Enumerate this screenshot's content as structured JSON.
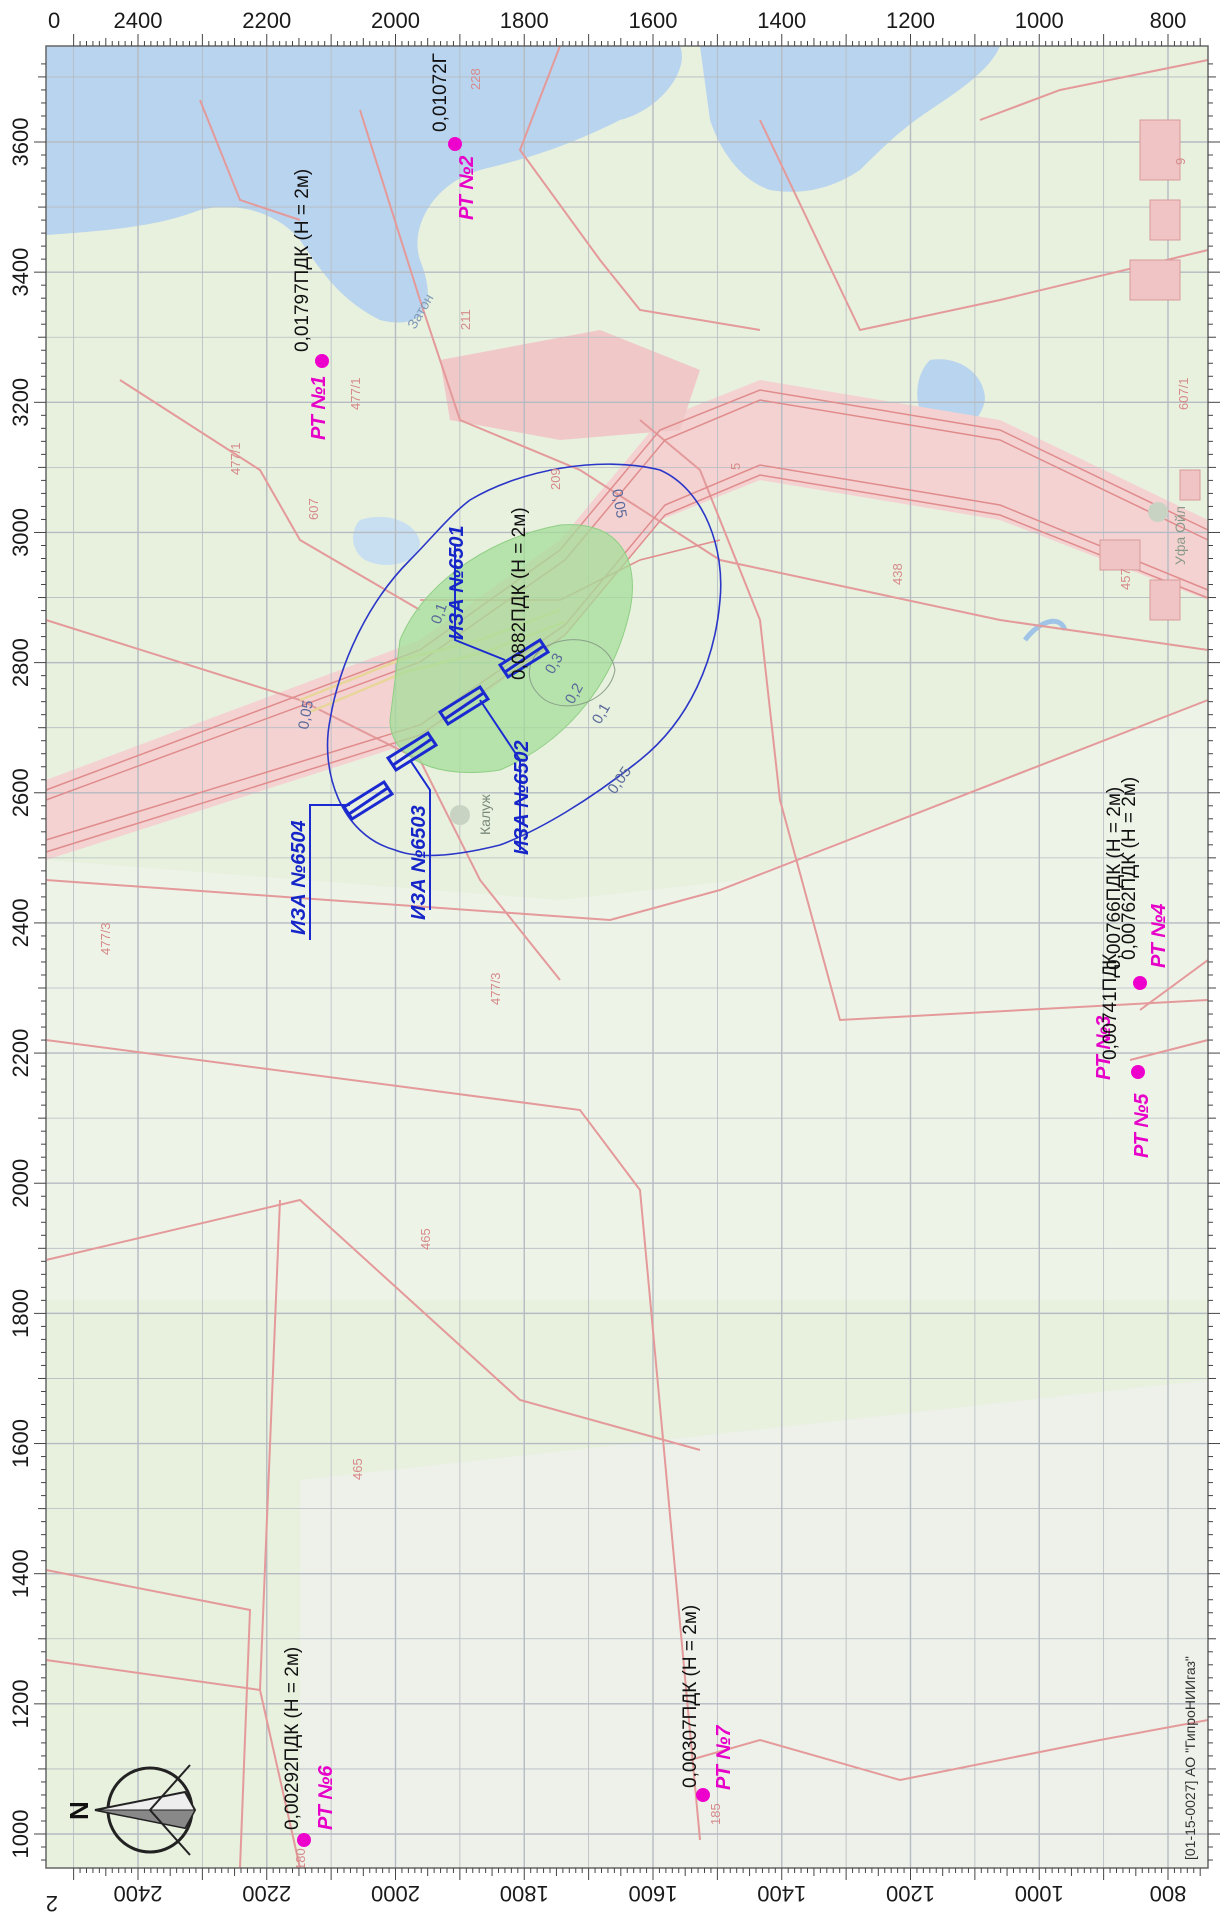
{
  "axes": {
    "top_x_ticks": [
      "2400",
      "2200",
      "2000",
      "1800",
      "1600",
      "1400",
      "1200",
      "1000",
      "800"
    ],
    "bottom_x_ticks": [
      "2400",
      "2200",
      "2000",
      "1800",
      "1600",
      "1400",
      "1200",
      "1000",
      "800"
    ],
    "top_x_zero": "0",
    "bottom_x_zero": "2",
    "left_y_ticks": [
      "3600",
      "3400",
      "3200",
      "3000",
      "2800",
      "2600",
      "2400",
      "2200",
      "2000",
      "1800",
      "1600",
      "1400",
      "1200",
      "1000"
    ]
  },
  "points": [
    {
      "label": "РТ №1",
      "value": "0,01797ПДК (Н = 2м)"
    },
    {
      "label": "РТ №2",
      "value": "0,01072Г"
    },
    {
      "label": "РТ №3",
      "value": "0,00766ПДК (Н = 2м)"
    },
    {
      "label": "РТ №4",
      "value": "0,00762ПДК (Н = 2м)"
    },
    {
      "label": "РТ №5",
      "value": "0,00741ПДК"
    },
    {
      "label": "РТ №6",
      "value": "0,00292ПДК (Н = 2м)"
    },
    {
      "label": "РТ №7",
      "value": "0,00307ПДК (Н = 2м)"
    }
  ],
  "sources": [
    {
      "label": "ИЗА №6501"
    },
    {
      "label": "ИЗА №6502"
    },
    {
      "label": "ИЗА №6503"
    },
    {
      "label": "ИЗА №6504"
    }
  ],
  "center_value": "0,0882ПДК (Н = 2м)",
  "isolines": [
    "0,05",
    "0,05",
    "0,1",
    "0,1",
    "0,2",
    "0,3",
    "0,05"
  ],
  "parcels": [
    "228",
    "211",
    "209",
    "477/1",
    "477/1",
    "607",
    "5",
    "438",
    "457",
    "607/1",
    "477/3",
    "477/3",
    "465",
    "465",
    "185",
    "180",
    "9"
  ],
  "place_names": [
    "Калуж",
    "Уфа Ойл",
    "Затон"
  ],
  "footer": "[01-15-0027] АО \"ГипроНИИгаз\"",
  "compass": {
    "letter": "N"
  },
  "colors": {
    "land": "#e8f0de",
    "water": "#b9d4ee",
    "grid": "#b5bbc2",
    "parcel_line": "#e49a9a",
    "road": "#f4c2c2",
    "isoline": "#2a36c8",
    "source": "#1a2ad0",
    "point": "#ee00cc",
    "zone_fill": "#a6dd9a"
  }
}
